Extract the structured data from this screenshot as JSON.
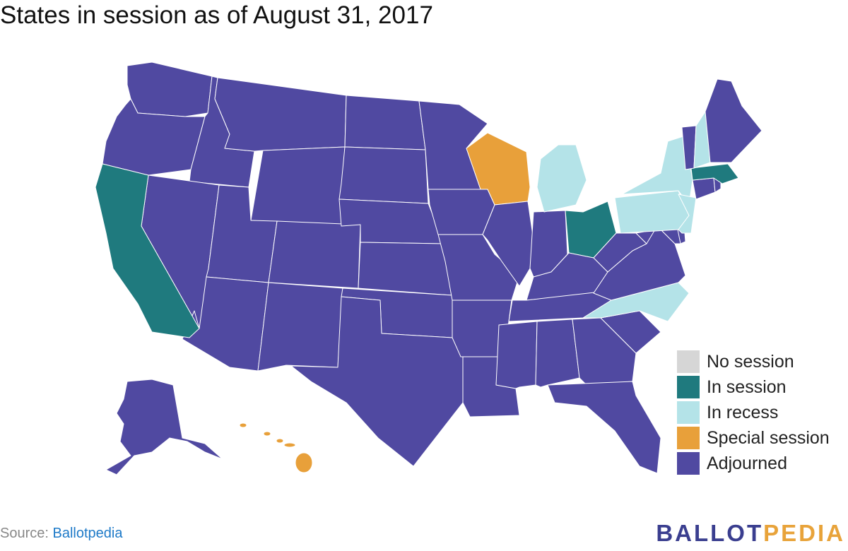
{
  "title": "States in session as of August 31, 2017",
  "colors": {
    "no_session": "#d6d6d6",
    "in_session": "#1f7a7e",
    "in_recess": "#b4e3e8",
    "special_session": "#e8a03a",
    "adjourned": "#5049a1",
    "border": "#ffffff"
  },
  "legend": [
    {
      "key": "no_session",
      "label": "No session"
    },
    {
      "key": "in_session",
      "label": "In session"
    },
    {
      "key": "in_recess",
      "label": "In recess"
    },
    {
      "key": "special_session",
      "label": "Special session"
    },
    {
      "key": "adjourned",
      "label": "Adjourned"
    }
  ],
  "states": {
    "CA": "in_session",
    "OH": "in_session",
    "MA": "in_session",
    "MI": "in_recess",
    "NY": "in_recess",
    "PA": "in_recess",
    "NJ": "in_recess",
    "NC": "in_recess",
    "NH": "in_recess",
    "WI": "special_session",
    "HI": "special_session",
    "WA": "adjourned",
    "OR": "adjourned",
    "ID": "adjourned",
    "MT": "adjourned",
    "NV": "adjourned",
    "UT": "adjourned",
    "WY": "adjourned",
    "AZ": "adjourned",
    "CO": "adjourned",
    "NM": "adjourned",
    "ND": "adjourned",
    "SD": "adjourned",
    "NE": "adjourned",
    "KS": "adjourned",
    "OK": "adjourned",
    "TX": "adjourned",
    "MN": "adjourned",
    "IA": "adjourned",
    "MO": "adjourned",
    "AR": "adjourned",
    "LA": "adjourned",
    "IL": "adjourned",
    "IN": "adjourned",
    "KY": "adjourned",
    "TN": "adjourned",
    "MS": "adjourned",
    "AL": "adjourned",
    "GA": "adjourned",
    "FL": "adjourned",
    "SC": "adjourned",
    "VA": "adjourned",
    "WV": "adjourned",
    "MD": "adjourned",
    "DE": "adjourned",
    "CT": "adjourned",
    "RI": "adjourned",
    "VT": "adjourned",
    "ME": "adjourned",
    "AK": "adjourned"
  },
  "source": {
    "prefix": "Source: ",
    "link": "Ballotpedia"
  },
  "logo": {
    "part1": "BALLOT",
    "part2": "PEDIA"
  }
}
